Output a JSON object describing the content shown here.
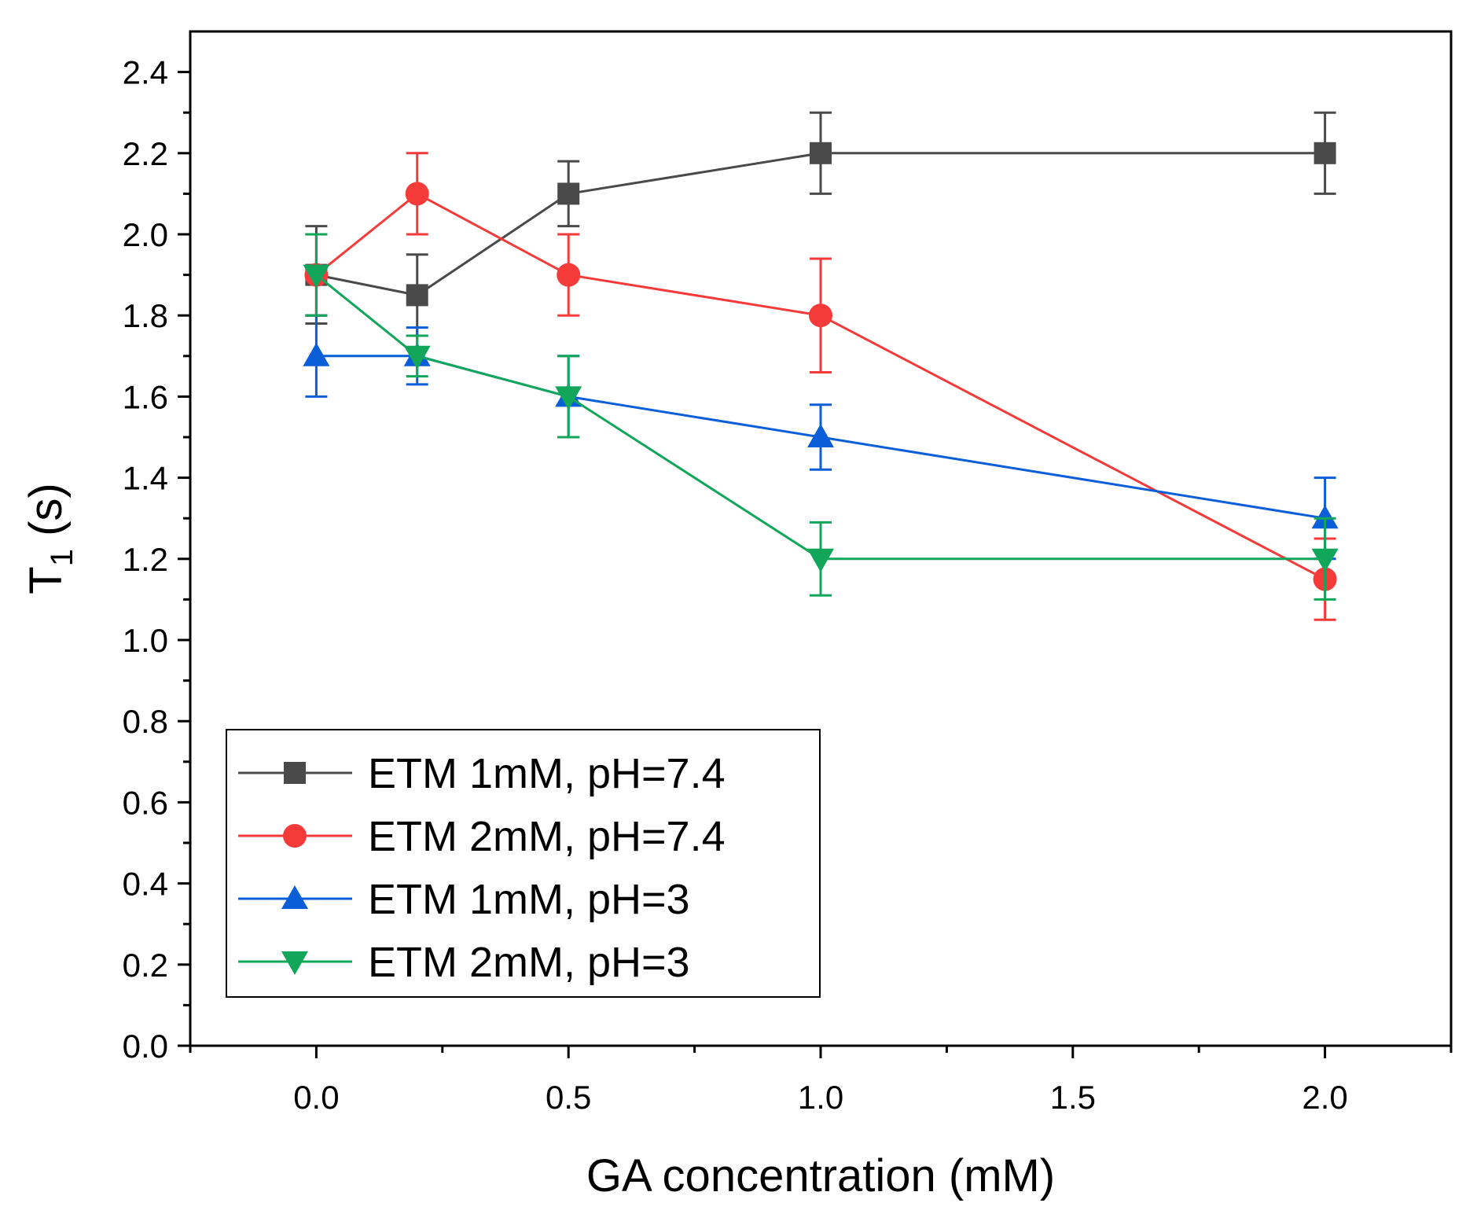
{
  "chart_data": {
    "type": "line",
    "xlabel": "GA concentration (mM)",
    "ylabel_main": "T",
    "ylabel_sub": "1",
    "ylabel_rest": " (s)",
    "xlim": [
      -0.25,
      2.25
    ],
    "ylim": [
      0.0,
      2.5
    ],
    "x_ticks": [
      0.0,
      0.5,
      1.0,
      1.5,
      2.0
    ],
    "x_tick_labels": [
      "0.0",
      "0.5",
      "1.0",
      "1.5",
      "2.0"
    ],
    "y_ticks": [
      0.0,
      0.2,
      0.4,
      0.6,
      0.8,
      1.0,
      1.2,
      1.4,
      1.6,
      1.8,
      2.0,
      2.2,
      2.4
    ],
    "y_tick_labels": [
      "0.0",
      "0.2",
      "0.4",
      "0.6",
      "0.8",
      "1.0",
      "1.2",
      "1.4",
      "1.6",
      "1.8",
      "2.0",
      "2.2",
      "2.4"
    ],
    "grid": false,
    "legend_position": "bottom-left",
    "x": [
      0.0,
      0.2,
      0.5,
      1.0,
      2.0
    ],
    "series": [
      {
        "name": "ETM 1mM, pH=7.4",
        "color": "#4a4a4a",
        "marker": "square",
        "values": [
          1.9,
          1.85,
          2.1,
          2.2,
          2.2
        ],
        "errors": [
          0.12,
          0.1,
          0.08,
          0.1,
          0.1
        ]
      },
      {
        "name": "ETM 2mM, pH=7.4",
        "color": "#f53a3a",
        "marker": "circle",
        "values": [
          1.9,
          2.1,
          1.9,
          1.8,
          1.15
        ],
        "errors": [
          0.1,
          0.1,
          0.1,
          0.14,
          0.1
        ]
      },
      {
        "name": "ETM 1mM, pH=3",
        "color": "#0a5fd8",
        "marker": "triangle-up",
        "values": [
          1.7,
          1.7,
          1.6,
          1.5,
          1.3
        ],
        "errors": [
          0.1,
          0.07,
          0.1,
          0.08,
          0.1
        ]
      },
      {
        "name": "ETM 2mM, pH=3",
        "color": "#12a65a",
        "marker": "triangle-down",
        "values": [
          1.9,
          1.7,
          1.6,
          1.2,
          1.2
        ],
        "errors": [
          0.1,
          0.05,
          0.1,
          0.09,
          0.1
        ]
      }
    ]
  }
}
